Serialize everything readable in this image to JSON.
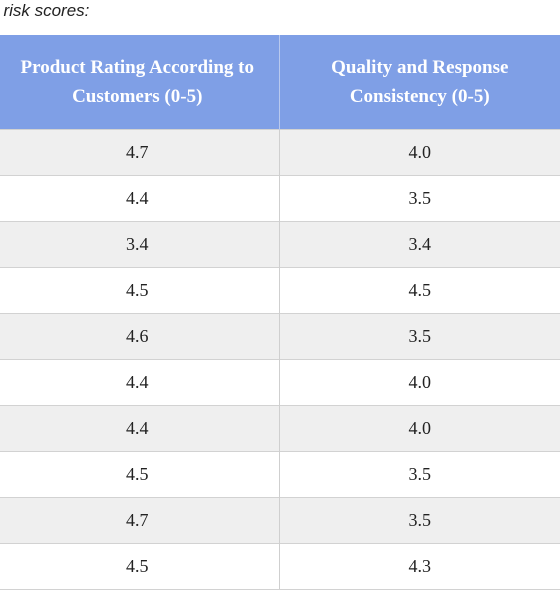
{
  "caption": "t risk scores:",
  "table": {
    "headers": [
      "Product Rating According to Customers (0-5)",
      "Quality and Response Consistency (0-5)"
    ],
    "rows": [
      [
        "4.7",
        "4.0"
      ],
      [
        "4.4",
        "3.5"
      ],
      [
        "3.4",
        "3.4"
      ],
      [
        "4.5",
        "4.5"
      ],
      [
        "4.6",
        "3.5"
      ],
      [
        "4.4",
        "4.0"
      ],
      [
        "4.4",
        "4.0"
      ],
      [
        "4.5",
        "3.5"
      ],
      [
        "4.7",
        "3.5"
      ],
      [
        "4.5",
        "4.3"
      ]
    ]
  },
  "colors": {
    "header_background": "#7f9fe6",
    "header_text": "#ffffff",
    "odd_row_background": "#efefef",
    "even_row_background": "#ffffff"
  }
}
